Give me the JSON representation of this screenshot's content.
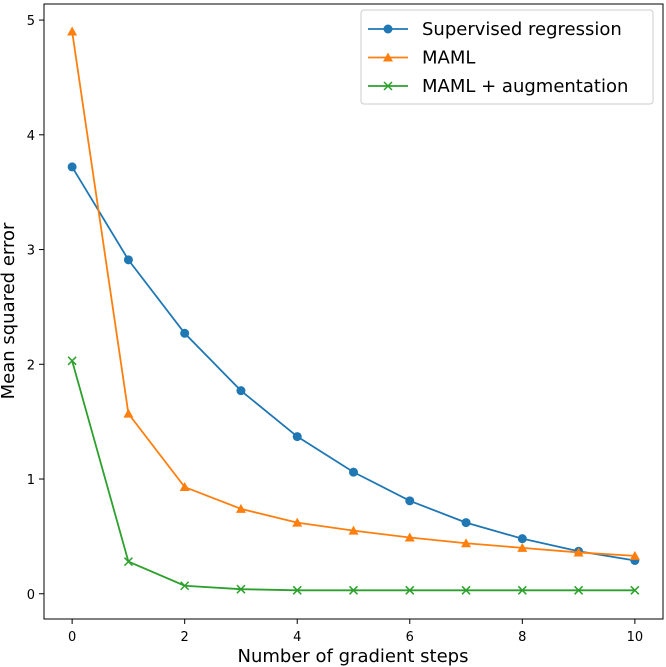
{
  "chart_data": {
    "type": "line",
    "title": "",
    "xlabel": "Number of gradient steps",
    "ylabel": "Mean squared error",
    "x": [
      0,
      1,
      2,
      3,
      4,
      5,
      6,
      7,
      8,
      9,
      10
    ],
    "xlim": [
      -0.5,
      10.5
    ],
    "ylim": [
      -0.22,
      5.14
    ],
    "xticks": [
      0,
      2,
      4,
      6,
      8,
      10
    ],
    "yticks": [
      0,
      1,
      2,
      3,
      4,
      5
    ],
    "grid": false,
    "legend_position": "top-right",
    "series": [
      {
        "name": "Supervised regression",
        "marker": "circle",
        "color": "#1f77b4",
        "values": [
          3.72,
          2.91,
          2.27,
          1.77,
          1.37,
          1.06,
          0.81,
          0.62,
          0.48,
          0.37,
          0.29
        ]
      },
      {
        "name": "MAML",
        "marker": "triangle",
        "color": "#ff7f0e",
        "values": [
          4.9,
          1.57,
          0.93,
          0.74,
          0.62,
          0.55,
          0.49,
          0.44,
          0.4,
          0.36,
          0.33
        ]
      },
      {
        "name": "MAML + augmentation",
        "marker": "x",
        "color": "#2ca02c",
        "values": [
          2.03,
          0.28,
          0.07,
          0.04,
          0.03,
          0.03,
          0.03,
          0.03,
          0.03,
          0.03,
          0.03
        ]
      }
    ]
  }
}
